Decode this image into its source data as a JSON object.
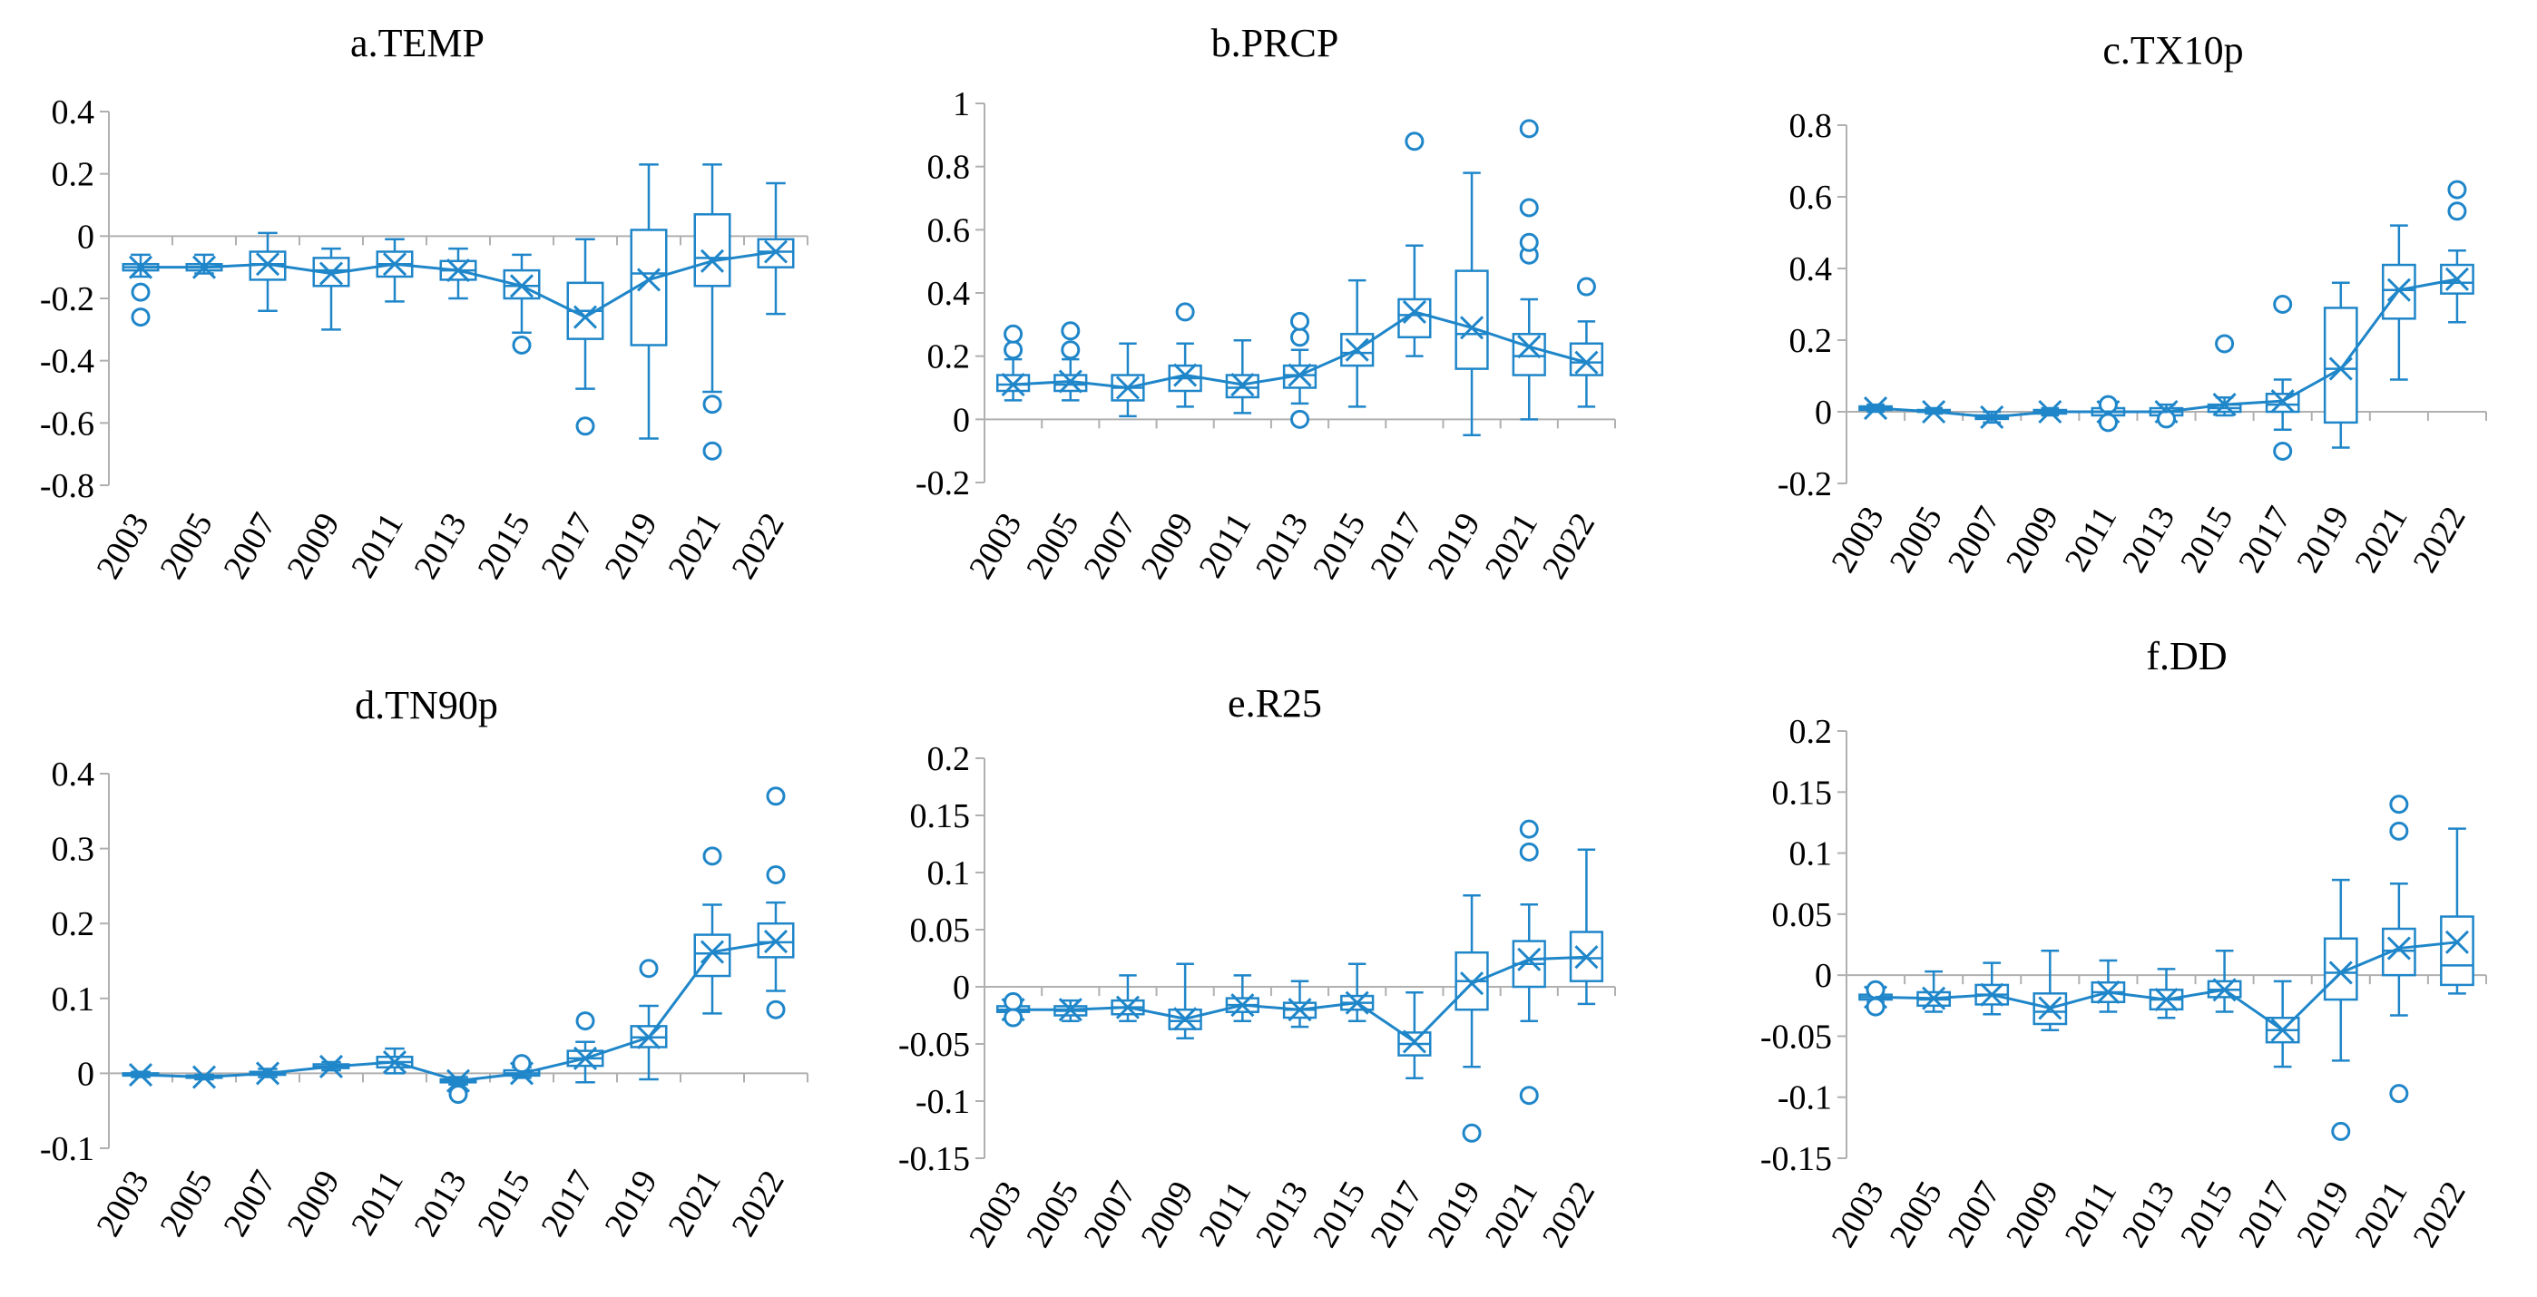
{
  "colors": {
    "series": "#1f86c9",
    "axis": "#b0b0b0",
    "text": "#000000"
  },
  "chart_data": [
    {
      "id": "a",
      "type": "box",
      "title": "a.TEMP",
      "categories": [
        "2003",
        "2005",
        "2007",
        "2009",
        "2011",
        "2013",
        "2015",
        "2017",
        "2019",
        "2021",
        "2022"
      ],
      "ylim": [
        -0.8,
        0.4
      ],
      "yticks": [
        -0.8,
        -0.6,
        -0.4,
        -0.2,
        0,
        0.2,
        0.4
      ],
      "ytick_labels": [
        "-0.8",
        "-0.6",
        "-0.4",
        "-0.2",
        "0",
        "0.2",
        "0.4"
      ],
      "boxes": [
        {
          "min": -0.13,
          "q1": -0.11,
          "median": -0.1,
          "q3": -0.09,
          "max": -0.06,
          "mean": -0.1,
          "outliers": [
            -0.18,
            -0.26
          ]
        },
        {
          "min": -0.12,
          "q1": -0.11,
          "median": -0.1,
          "q3": -0.09,
          "max": -0.06,
          "mean": -0.1,
          "outliers": []
        },
        {
          "min": -0.24,
          "q1": -0.14,
          "median": -0.09,
          "q3": -0.05,
          "max": 0.01,
          "mean": -0.09,
          "outliers": []
        },
        {
          "min": -0.3,
          "q1": -0.16,
          "median": -0.11,
          "q3": -0.07,
          "max": -0.04,
          "mean": -0.12,
          "outliers": []
        },
        {
          "min": -0.21,
          "q1": -0.13,
          "median": -0.09,
          "q3": -0.05,
          "max": -0.01,
          "mean": -0.09,
          "outliers": []
        },
        {
          "min": -0.2,
          "q1": -0.14,
          "median": -0.11,
          "q3": -0.08,
          "max": -0.04,
          "mean": -0.11,
          "outliers": []
        },
        {
          "min": -0.31,
          "q1": -0.2,
          "median": -0.16,
          "q3": -0.11,
          "max": -0.06,
          "mean": -0.16,
          "outliers": [
            -0.35
          ]
        },
        {
          "min": -0.49,
          "q1": -0.33,
          "median": -0.24,
          "q3": -0.15,
          "max": -0.01,
          "mean": -0.26,
          "outliers": [
            -0.61
          ]
        },
        {
          "min": -0.65,
          "q1": -0.35,
          "median": -0.12,
          "q3": 0.02,
          "max": 0.23,
          "mean": -0.14,
          "outliers": []
        },
        {
          "min": -0.5,
          "q1": -0.16,
          "median": -0.07,
          "q3": 0.07,
          "max": 0.23,
          "mean": -0.08,
          "outliers": [
            -0.54,
            -0.69
          ]
        },
        {
          "min": -0.25,
          "q1": -0.1,
          "median": -0.05,
          "q3": -0.01,
          "max": 0.17,
          "mean": -0.05,
          "outliers": []
        }
      ]
    },
    {
      "id": "b",
      "type": "box",
      "title": "b.PRCP",
      "categories": [
        "2003",
        "2005",
        "2007",
        "2009",
        "2011",
        "2013",
        "2015",
        "2017",
        "2019",
        "2021",
        "2022"
      ],
      "ylim": [
        -0.2,
        1.0
      ],
      "yticks": [
        -0.2,
        0,
        0.2,
        0.4,
        0.6,
        0.8,
        1
      ],
      "ytick_labels": [
        "-0.2",
        "0",
        "0.2",
        "0.4",
        "0.6",
        "0.8",
        "1"
      ],
      "boxes": [
        {
          "min": 0.06,
          "q1": 0.09,
          "median": 0.11,
          "q3": 0.14,
          "max": 0.19,
          "mean": 0.11,
          "outliers": [
            0.22,
            0.27
          ]
        },
        {
          "min": 0.06,
          "q1": 0.09,
          "median": 0.11,
          "q3": 0.14,
          "max": 0.19,
          "mean": 0.12,
          "outliers": [
            0.22,
            0.28
          ]
        },
        {
          "min": 0.01,
          "q1": 0.06,
          "median": 0.1,
          "q3": 0.14,
          "max": 0.24,
          "mean": 0.1,
          "outliers": []
        },
        {
          "min": 0.04,
          "q1": 0.09,
          "median": 0.13,
          "q3": 0.17,
          "max": 0.24,
          "mean": 0.14,
          "outliers": [
            0.34
          ]
        },
        {
          "min": 0.02,
          "q1": 0.07,
          "median": 0.1,
          "q3": 0.14,
          "max": 0.25,
          "mean": 0.11,
          "outliers": []
        },
        {
          "min": 0.05,
          "q1": 0.1,
          "median": 0.14,
          "q3": 0.17,
          "max": 0.22,
          "mean": 0.14,
          "outliers": [
            0.26,
            0.31,
            0.0
          ]
        },
        {
          "min": 0.04,
          "q1": 0.17,
          "median": 0.21,
          "q3": 0.27,
          "max": 0.44,
          "mean": 0.22,
          "outliers": []
        },
        {
          "min": 0.2,
          "q1": 0.26,
          "median": 0.33,
          "q3": 0.38,
          "max": 0.55,
          "mean": 0.34,
          "outliers": [
            0.88
          ]
        },
        {
          "min": -0.05,
          "q1": 0.16,
          "median": 0.27,
          "q3": 0.47,
          "max": 0.78,
          "mean": 0.29,
          "outliers": []
        },
        {
          "min": 0.0,
          "q1": 0.14,
          "median": 0.2,
          "q3": 0.27,
          "max": 0.38,
          "mean": 0.23,
          "outliers": [
            0.52,
            0.56,
            0.67,
            0.92
          ]
        },
        {
          "min": 0.04,
          "q1": 0.14,
          "median": 0.18,
          "q3": 0.24,
          "max": 0.31,
          "mean": 0.18,
          "outliers": [
            0.42
          ]
        }
      ]
    },
    {
      "id": "c",
      "type": "box",
      "title": "c.TX10p",
      "categories": [
        "2003",
        "2005",
        "2007",
        "2009",
        "2011",
        "2013",
        "2015",
        "2017",
        "2019",
        "2021",
        "2022"
      ],
      "ylim": [
        -0.2,
        0.8
      ],
      "yticks": [
        -0.2,
        0,
        0.2,
        0.4,
        0.6,
        0.8
      ],
      "ytick_labels": [
        "-0.2",
        "0",
        "0.2",
        "0.4",
        "0.6",
        "0.8"
      ],
      "boxes": [
        {
          "min": 0.0,
          "q1": 0.005,
          "median": 0.01,
          "q3": 0.015,
          "max": 0.02,
          "mean": 0.01,
          "outliers": []
        },
        {
          "min": -0.005,
          "q1": 0.0,
          "median": 0.0,
          "q3": 0.005,
          "max": 0.01,
          "mean": 0.0,
          "outliers": []
        },
        {
          "min": -0.03,
          "q1": -0.02,
          "median": -0.015,
          "q3": -0.01,
          "max": 0.0,
          "mean": -0.015,
          "outliers": []
        },
        {
          "min": -0.01,
          "q1": -0.005,
          "median": 0.0,
          "q3": 0.005,
          "max": 0.01,
          "mean": 0.0,
          "outliers": []
        },
        {
          "min": -0.02,
          "q1": -0.01,
          "median": 0.0,
          "q3": 0.01,
          "max": 0.02,
          "mean": 0.0,
          "outliers": [
            -0.03,
            0.02
          ]
        },
        {
          "min": -0.02,
          "q1": -0.01,
          "median": 0.0,
          "q3": 0.01,
          "max": 0.02,
          "mean": 0.0,
          "outliers": [
            -0.02
          ]
        },
        {
          "min": -0.01,
          "q1": 0.0,
          "median": 0.01,
          "q3": 0.02,
          "max": 0.04,
          "mean": 0.02,
          "outliers": [
            0.19
          ]
        },
        {
          "min": -0.05,
          "q1": 0.0,
          "median": 0.02,
          "q3": 0.05,
          "max": 0.09,
          "mean": 0.03,
          "outliers": [
            0.3,
            -0.11
          ]
        },
        {
          "min": -0.1,
          "q1": -0.03,
          "median": 0.12,
          "q3": 0.29,
          "max": 0.36,
          "mean": 0.12,
          "outliers": []
        },
        {
          "min": 0.09,
          "q1": 0.26,
          "median": 0.34,
          "q3": 0.41,
          "max": 0.52,
          "mean": 0.34,
          "outliers": []
        },
        {
          "min": 0.25,
          "q1": 0.33,
          "median": 0.36,
          "q3": 0.41,
          "max": 0.45,
          "mean": 0.37,
          "outliers": [
            0.56,
            0.62
          ]
        }
      ]
    },
    {
      "id": "d",
      "type": "box",
      "title": "d.TN90p",
      "categories": [
        "2003",
        "2005",
        "2007",
        "2009",
        "2011",
        "2013",
        "2015",
        "2017",
        "2019",
        "2021",
        "2022"
      ],
      "ylim": [
        -0.1,
        0.4
      ],
      "yticks": [
        -0.1,
        0,
        0.1,
        0.2,
        0.3,
        0.4
      ],
      "ytick_labels": [
        "-0.1",
        "0",
        "0.1",
        "0.2",
        "0.3",
        "0.4"
      ],
      "boxes": [
        {
          "min": -0.005,
          "q1": -0.003,
          "median": -0.002,
          "q3": 0.0,
          "max": 0.002,
          "mean": -0.002,
          "outliers": []
        },
        {
          "min": -0.008,
          "q1": -0.006,
          "median": -0.005,
          "q3": -0.003,
          "max": -0.002,
          "mean": -0.005,
          "outliers": []
        },
        {
          "min": -0.005,
          "q1": -0.002,
          "median": 0.0,
          "q3": 0.002,
          "max": 0.006,
          "mean": 0.0,
          "outliers": []
        },
        {
          "min": 0.004,
          "q1": 0.007,
          "median": 0.009,
          "q3": 0.012,
          "max": 0.015,
          "mean": 0.009,
          "outliers": []
        },
        {
          "min": 0.0,
          "q1": 0.008,
          "median": 0.015,
          "q3": 0.022,
          "max": 0.033,
          "mean": 0.015,
          "outliers": []
        },
        {
          "min": -0.015,
          "q1": -0.012,
          "median": -0.01,
          "q3": -0.008,
          "max": -0.005,
          "mean": -0.01,
          "outliers": [
            -0.028
          ]
        },
        {
          "min": -0.006,
          "q1": -0.003,
          "median": 0.0,
          "q3": 0.004,
          "max": 0.008,
          "mean": 0.0,
          "outliers": [
            0.013
          ]
        },
        {
          "min": -0.012,
          "q1": 0.01,
          "median": 0.02,
          "q3": 0.03,
          "max": 0.042,
          "mean": 0.02,
          "outliers": [
            0.07
          ]
        },
        {
          "min": -0.008,
          "q1": 0.035,
          "median": 0.048,
          "q3": 0.063,
          "max": 0.09,
          "mean": 0.048,
          "outliers": [
            0.14
          ]
        },
        {
          "min": 0.08,
          "q1": 0.13,
          "median": 0.16,
          "q3": 0.185,
          "max": 0.225,
          "mean": 0.162,
          "outliers": [
            0.29
          ]
        },
        {
          "min": 0.11,
          "q1": 0.155,
          "median": 0.175,
          "q3": 0.2,
          "max": 0.228,
          "mean": 0.176,
          "outliers": [
            0.085,
            0.265,
            0.37
          ]
        }
      ]
    },
    {
      "id": "e",
      "type": "box",
      "title": "e.R25",
      "categories": [
        "2003",
        "2005",
        "2007",
        "2009",
        "2011",
        "2013",
        "2015",
        "2017",
        "2019",
        "2021",
        "2022"
      ],
      "ylim": [
        -0.15,
        0.2
      ],
      "yticks": [
        -0.15,
        -0.1,
        -0.05,
        0,
        0.05,
        0.1,
        0.15,
        0.2
      ],
      "ytick_labels": [
        "-0.15",
        "-0.1",
        "-0.05",
        "0",
        "0.05",
        "0.1",
        "0.15",
        "0.2"
      ],
      "boxes": [
        {
          "min": -0.025,
          "q1": -0.022,
          "median": -0.02,
          "q3": -0.017,
          "max": -0.015,
          "mean": -0.02,
          "outliers": [
            -0.013,
            -0.027
          ]
        },
        {
          "min": -0.03,
          "q1": -0.025,
          "median": -0.021,
          "q3": -0.017,
          "max": -0.012,
          "mean": -0.02,
          "outliers": []
        },
        {
          "min": -0.03,
          "q1": -0.024,
          "median": -0.018,
          "q3": -0.012,
          "max": 0.01,
          "mean": -0.018,
          "outliers": []
        },
        {
          "min": -0.045,
          "q1": -0.037,
          "median": -0.03,
          "q3": -0.02,
          "max": 0.02,
          "mean": -0.028,
          "outliers": []
        },
        {
          "min": -0.03,
          "q1": -0.022,
          "median": -0.016,
          "q3": -0.01,
          "max": 0.01,
          "mean": -0.016,
          "outliers": []
        },
        {
          "min": -0.035,
          "q1": -0.027,
          "median": -0.02,
          "q3": -0.014,
          "max": 0.005,
          "mean": -0.02,
          "outliers": []
        },
        {
          "min": -0.03,
          "q1": -0.02,
          "median": -0.014,
          "q3": -0.008,
          "max": 0.02,
          "mean": -0.014,
          "outliers": []
        },
        {
          "min": -0.08,
          "q1": -0.06,
          "median": -0.05,
          "q3": -0.04,
          "max": -0.005,
          "mean": -0.048,
          "outliers": []
        },
        {
          "min": -0.07,
          "q1": -0.02,
          "median": 0.005,
          "q3": 0.03,
          "max": 0.08,
          "mean": 0.003,
          "outliers": [
            -0.128
          ]
        },
        {
          "min": -0.03,
          "q1": 0.0,
          "median": 0.02,
          "q3": 0.04,
          "max": 0.072,
          "mean": 0.024,
          "outliers": [
            0.138,
            0.118,
            -0.095
          ]
        },
        {
          "min": -0.015,
          "q1": 0.005,
          "median": 0.025,
          "q3": 0.048,
          "max": 0.12,
          "mean": 0.026,
          "outliers": []
        }
      ]
    },
    {
      "id": "f",
      "type": "box",
      "title": "f.DD",
      "categories": [
        "2003",
        "2005",
        "2007",
        "2009",
        "2011",
        "2013",
        "2015",
        "2017",
        "2019",
        "2021",
        "2022"
      ],
      "ylim": [
        -0.15,
        0.2
      ],
      "yticks": [
        -0.15,
        -0.1,
        -0.05,
        0,
        0.05,
        0.1,
        0.15,
        0.2
      ],
      "ytick_labels": [
        "-0.15",
        "-0.1",
        "-0.05",
        "0",
        "0.05",
        "0.1",
        "0.15",
        "0.2"
      ],
      "boxes": [
        {
          "min": -0.022,
          "q1": -0.02,
          "median": -0.018,
          "q3": -0.016,
          "max": -0.014,
          "mean": -0.018,
          "outliers": [
            -0.012,
            -0.026
          ]
        },
        {
          "min": -0.03,
          "q1": -0.025,
          "median": -0.02,
          "q3": -0.014,
          "max": 0.003,
          "mean": -0.019,
          "outliers": []
        },
        {
          "min": -0.032,
          "q1": -0.024,
          "median": -0.016,
          "q3": -0.008,
          "max": 0.01,
          "mean": -0.016,
          "outliers": []
        },
        {
          "min": -0.045,
          "q1": -0.04,
          "median": -0.03,
          "q3": -0.015,
          "max": 0.02,
          "mean": -0.027,
          "outliers": []
        },
        {
          "min": -0.03,
          "q1": -0.022,
          "median": -0.014,
          "q3": -0.006,
          "max": 0.012,
          "mean": -0.014,
          "outliers": []
        },
        {
          "min": -0.035,
          "q1": -0.028,
          "median": -0.02,
          "q3": -0.012,
          "max": 0.005,
          "mean": -0.02,
          "outliers": []
        },
        {
          "min": -0.03,
          "q1": -0.018,
          "median": -0.012,
          "q3": -0.005,
          "max": 0.02,
          "mean": -0.012,
          "outliers": []
        },
        {
          "min": -0.075,
          "q1": -0.055,
          "median": -0.045,
          "q3": -0.035,
          "max": -0.005,
          "mean": -0.045,
          "outliers": []
        },
        {
          "min": -0.07,
          "q1": -0.02,
          "median": 0.002,
          "q3": 0.03,
          "max": 0.078,
          "mean": 0.002,
          "outliers": [
            -0.128
          ]
        },
        {
          "min": -0.033,
          "q1": 0.0,
          "median": 0.02,
          "q3": 0.038,
          "max": 0.075,
          "mean": 0.022,
          "outliers": [
            0.14,
            0.118,
            -0.097
          ]
        },
        {
          "min": -0.015,
          "q1": -0.008,
          "median": 0.008,
          "q3": 0.048,
          "max": 0.12,
          "mean": 0.027,
          "outliers": []
        }
      ]
    }
  ]
}
